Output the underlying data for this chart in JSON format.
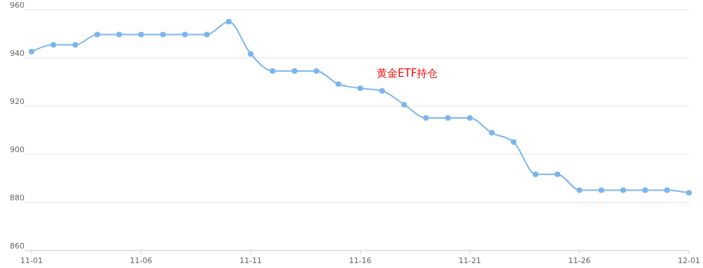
{
  "chart_data": {
    "type": "line",
    "title": "黄金ETF持仓",
    "categories": [
      "11-01",
      null,
      null,
      null,
      null,
      "11-06",
      null,
      null,
      null,
      null,
      "11-11",
      null,
      null,
      null,
      null,
      "11-16",
      null,
      null,
      null,
      null,
      "11-21",
      null,
      null,
      null,
      null,
      "11-26",
      null,
      null,
      null,
      null,
      "12-01"
    ],
    "series": [
      {
        "color": "#7cb5ec",
        "values": [
          942.6,
          945.4,
          945.4,
          949.7,
          949.7,
          949.7,
          949.7,
          949.7,
          949.7,
          955.1,
          941.7,
          934.6,
          934.6,
          934.6,
          929.1,
          927.4,
          926.3,
          920.6,
          915.1,
          915.1,
          915.1,
          908.9,
          905.1,
          891.7,
          891.7,
          885.1,
          885.1,
          885.1,
          885.1,
          885.1,
          884.0
        ]
      }
    ],
    "ylim": [
      860,
      960
    ],
    "yticks": [
      860,
      880,
      900,
      920,
      940,
      960
    ],
    "grid": "y",
    "marker": "circle",
    "line_style": "solid"
  }
}
